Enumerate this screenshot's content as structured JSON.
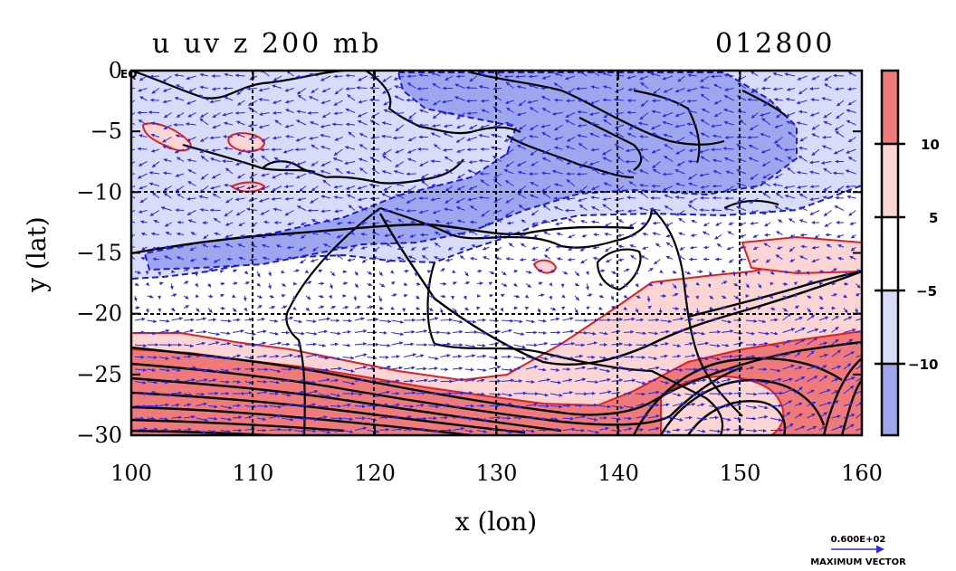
{
  "header": {
    "title": "u uv z 200 mb",
    "date": "012800",
    "eq_label": "EQ"
  },
  "chart_data": {
    "type": "contour map with wind vectors",
    "xlabel": "x (lon)",
    "ylabel": "y (lat)",
    "xlim": [
      100,
      160
    ],
    "ylim": [
      -30,
      0
    ],
    "x_ticks": [
      100,
      110,
      120,
      130,
      140,
      150,
      160
    ],
    "y_ticks": [
      0,
      -5,
      -10,
      -15,
      -20,
      -25,
      -30
    ],
    "y_tick_labels": [
      "0",
      "−5",
      "−10",
      "−15",
      "−20",
      "−25",
      "−30"
    ],
    "colorbar": {
      "labels": [
        "10",
        "5",
        "−5",
        "−10"
      ],
      "levels": [
        10,
        5,
        -5,
        -10
      ],
      "colors": {
        "strong_positive": "#f07a7a",
        "positive": "#fbd4d4",
        "neutral": "#ffffff",
        "negative": "#d8dcf8",
        "strong_negative": "#9ea7ee"
      }
    },
    "vector_reference": {
      "value": "0.600E+02",
      "label": "MAXIMUM VECTOR"
    },
    "colors": {
      "positive_contour": "#e02020",
      "negative_contour": "#1a1ae0",
      "height_contour": "#000000",
      "vectors": "#2a2ae8",
      "grid": "#000000"
    }
  }
}
